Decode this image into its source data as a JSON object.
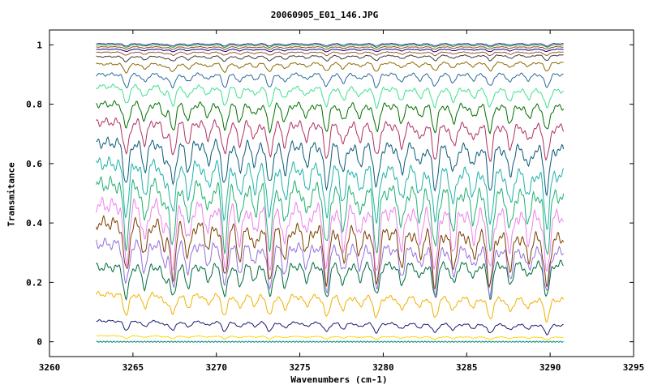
{
  "chart_data": {
    "type": "line",
    "title": "20060905_E01_146.JPG",
    "xlabel": "Wavenumbers (cm-1)",
    "ylabel": "Transmitance",
    "xlim": [
      3260,
      3295
    ],
    "ylim": [
      -0.05,
      1.05
    ],
    "x_ticks": [
      "3260",
      "3265",
      "3270",
      "3275",
      "3280",
      "3285",
      "3290",
      "3295"
    ],
    "y_ticks": [
      "0",
      "0.2",
      "0.4",
      "0.6",
      "0.8",
      "1"
    ],
    "grid": false,
    "x_range": [
      3262.8,
      3290.8
    ],
    "absorption_lines_cm1": [
      3264.6,
      3265.7,
      3266.9,
      3267.4,
      3268.3,
      3269.5,
      3270.5,
      3271.4,
      3272.3,
      3273.2,
      3274.1,
      3275.4,
      3276.6,
      3277.6,
      3278.6,
      3279.6,
      3281.1,
      3282.2,
      3283.1,
      3284.2,
      3285.4,
      3286.4,
      3287.6,
      3288.7,
      3289.8
    ],
    "series": [
      {
        "color": "#00897b",
        "baseline": 0.0,
        "end_value": 0.0
      },
      {
        "color": "#ffd700",
        "baseline": 0.02,
        "end_value": 0.015
      },
      {
        "color": "#191970",
        "baseline": 0.07,
        "end_value": 0.055
      },
      {
        "color": "#f0b000",
        "baseline": 0.16,
        "end_value": 0.14
      },
      {
        "color": "#006b3c",
        "baseline": 0.25,
        "end_value": 0.26
      },
      {
        "color": "#9370db",
        "baseline": 0.33,
        "end_value": 0.3
      },
      {
        "color": "#7b3f00",
        "baseline": 0.4,
        "end_value": 0.345
      },
      {
        "color": "#ee82ee",
        "baseline": 0.46,
        "end_value": 0.42
      },
      {
        "color": "#20b070",
        "baseline": 0.53,
        "end_value": 0.49
      },
      {
        "color": "#20b2aa",
        "baseline": 0.6,
        "end_value": 0.56
      },
      {
        "color": "#0a5a7a",
        "baseline": 0.67,
        "end_value": 0.645
      },
      {
        "color": "#b03060",
        "baseline": 0.74,
        "end_value": 0.72
      },
      {
        "color": "#007000",
        "baseline": 0.8,
        "end_value": 0.79
      },
      {
        "color": "#40e090",
        "baseline": 0.86,
        "end_value": 0.845
      },
      {
        "color": "#2a6a9a",
        "baseline": 0.9,
        "end_value": 0.9
      },
      {
        "color": "#8a6a00",
        "baseline": 0.935,
        "end_value": 0.94
      },
      {
        "color": "#3a3a3a",
        "baseline": 0.96,
        "end_value": 0.965
      },
      {
        "color": "#a0522d",
        "baseline": 0.975,
        "end_value": 0.975
      },
      {
        "color": "#000080",
        "baseline": 0.985,
        "end_value": 0.985
      },
      {
        "color": "#8b4513",
        "baseline": 0.993,
        "end_value": 0.993
      },
      {
        "color": "#228b22",
        "baseline": 1.0,
        "end_value": 1.0
      },
      {
        "color": "#4040c0",
        "baseline": 1.004,
        "end_value": 1.004
      }
    ]
  }
}
